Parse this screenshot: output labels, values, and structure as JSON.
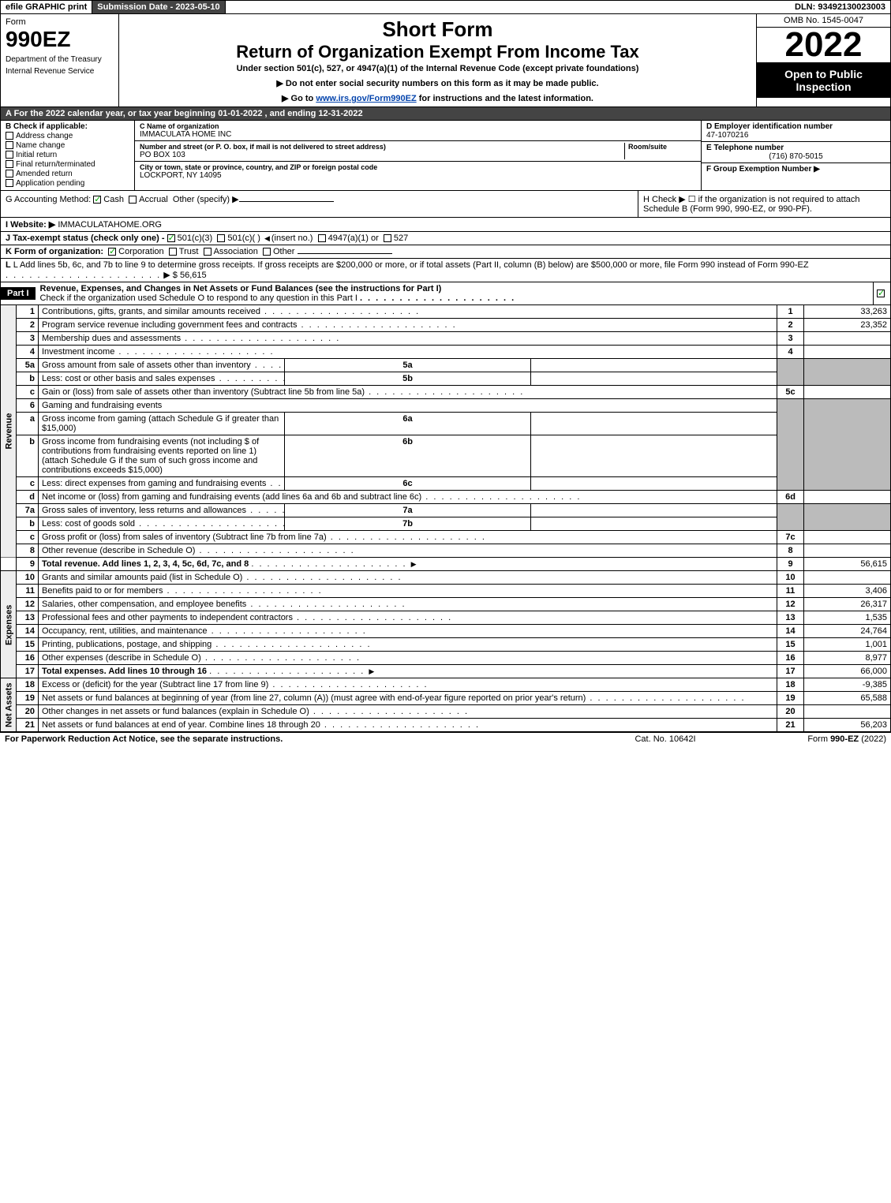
{
  "topbar": {
    "efile": "efile GRAPHIC print",
    "sub_date_label": "Submission Date - 2023-05-10",
    "dln": "DLN: 93492130023003"
  },
  "header": {
    "form_label": "Form",
    "form_no": "990EZ",
    "dept1": "Department of the Treasury",
    "dept2": "Internal Revenue Service",
    "short": "Short Form",
    "title": "Return of Organization Exempt From Income Tax",
    "under": "Under section 501(c), 527, or 4947(a)(1) of the Internal Revenue Code (except private foundations)",
    "instr1": "▶ Do not enter social security numbers on this form as it may be made public.",
    "instr2_pre": "▶ Go to ",
    "instr2_link": "www.irs.gov/Form990EZ",
    "instr2_post": " for instructions and the latest information.",
    "omb": "OMB No. 1545-0047",
    "year": "2022",
    "open": "Open to Public Inspection"
  },
  "section_a": "A  For the 2022 calendar year, or tax year beginning 01-01-2022 , and ending 12-31-2022",
  "b": {
    "head": "B  Check if applicable:",
    "opts": [
      "Address change",
      "Name change",
      "Initial return",
      "Final return/terminated",
      "Amended return",
      "Application pending"
    ]
  },
  "c": {
    "name_label": "C Name of organization",
    "name": "IMMACULATA HOME INC",
    "addr_label": "Number and street (or P. O. box, if mail is not delivered to street address)",
    "room_label": "Room/suite",
    "addr": "PO BOX 103",
    "city_label": "City or town, state or province, country, and ZIP or foreign postal code",
    "city": "LOCKPORT, NY  14095"
  },
  "d": {
    "head": "D Employer identification number",
    "ein": "47-1070216",
    "e_head": "E Telephone number",
    "phone": "(716) 870-5015",
    "f_head": "F Group Exemption Number  ▶"
  },
  "g": {
    "label": "G Accounting Method:",
    "cash": "Cash",
    "accrual": "Accrual",
    "other": "Other (specify) ▶"
  },
  "h": {
    "text": "H  Check ▶  ☐  if the organization is not required to attach Schedule B (Form 990, 990-EZ, or 990-PF)."
  },
  "i": {
    "label": "I Website: ▶",
    "val": "IMMACULATAHOME.ORG"
  },
  "j": {
    "label": "J Tax-exempt status (check only one) -",
    "opt1": "501(c)(3)",
    "opt2": "501(c)(  )",
    "opt2_note": "(insert no.)",
    "opt3": "4947(a)(1) or",
    "opt4": "527"
  },
  "k": {
    "label": "K Form of organization:",
    "opts": [
      "Corporation",
      "Trust",
      "Association",
      "Other"
    ]
  },
  "l": {
    "text": "L Add lines 5b, 6c, and 7b to line 9 to determine gross receipts. If gross receipts are $200,000 or more, or if total assets (Part II, column (B) below) are $500,000 or more, file Form 990 instead of Form 990-EZ",
    "amount_label": "▶ $",
    "amount": "56,615"
  },
  "part1": {
    "part": "Part I",
    "title": "Revenue, Expenses, and Changes in Net Assets or Fund Balances (see the instructions for Part I)",
    "sub": "Check if the organization used Schedule O to respond to any question in this Part I"
  },
  "sides": {
    "rev": "Revenue",
    "exp": "Expenses",
    "net": "Net Assets"
  },
  "lines": {
    "l1": {
      "n": "1",
      "d": "Contributions, gifts, grants, and similar amounts received",
      "c": "1",
      "v": "33,263"
    },
    "l2": {
      "n": "2",
      "d": "Program service revenue including government fees and contracts",
      "c": "2",
      "v": "23,352"
    },
    "l3": {
      "n": "3",
      "d": "Membership dues and assessments",
      "c": "3",
      "v": ""
    },
    "l4": {
      "n": "4",
      "d": "Investment income",
      "c": "4",
      "v": ""
    },
    "l5a": {
      "n": "5a",
      "d": "Gross amount from sale of assets other than inventory",
      "m": "5a"
    },
    "l5b": {
      "n": "b",
      "d": "Less: cost or other basis and sales expenses",
      "m": "5b"
    },
    "l5c": {
      "n": "c",
      "d": "Gain or (loss) from sale of assets other than inventory (Subtract line 5b from line 5a)",
      "c": "5c",
      "v": ""
    },
    "l6": {
      "n": "6",
      "d": "Gaming and fundraising events"
    },
    "l6a": {
      "n": "a",
      "d": "Gross income from gaming (attach Schedule G if greater than $15,000)",
      "m": "6a"
    },
    "l6b": {
      "n": "b",
      "d": "Gross income from fundraising events (not including $                    of contributions from fundraising events reported on line 1) (attach Schedule G if the sum of such gross income and contributions exceeds $15,000)",
      "m": "6b"
    },
    "l6c": {
      "n": "c",
      "d": "Less: direct expenses from gaming and fundraising events",
      "m": "6c"
    },
    "l6d": {
      "n": "d",
      "d": "Net income or (loss) from gaming and fundraising events (add lines 6a and 6b and subtract line 6c)",
      "c": "6d",
      "v": ""
    },
    "l7a": {
      "n": "7a",
      "d": "Gross sales of inventory, less returns and allowances",
      "m": "7a"
    },
    "l7b": {
      "n": "b",
      "d": "Less: cost of goods sold",
      "m": "7b"
    },
    "l7c": {
      "n": "c",
      "d": "Gross profit or (loss) from sales of inventory (Subtract line 7b from line 7a)",
      "c": "7c",
      "v": ""
    },
    "l8": {
      "n": "8",
      "d": "Other revenue (describe in Schedule O)",
      "c": "8",
      "v": ""
    },
    "l9": {
      "n": "9",
      "d": "Total revenue. Add lines 1, 2, 3, 4, 5c, 6d, 7c, and 8",
      "c": "9",
      "v": "56,615",
      "bold": true,
      "arrow": true
    },
    "l10": {
      "n": "10",
      "d": "Grants and similar amounts paid (list in Schedule O)",
      "c": "10",
      "v": ""
    },
    "l11": {
      "n": "11",
      "d": "Benefits paid to or for members",
      "c": "11",
      "v": "3,406"
    },
    "l12": {
      "n": "12",
      "d": "Salaries, other compensation, and employee benefits",
      "c": "12",
      "v": "26,317"
    },
    "l13": {
      "n": "13",
      "d": "Professional fees and other payments to independent contractors",
      "c": "13",
      "v": "1,535"
    },
    "l14": {
      "n": "14",
      "d": "Occupancy, rent, utilities, and maintenance",
      "c": "14",
      "v": "24,764"
    },
    "l15": {
      "n": "15",
      "d": "Printing, publications, postage, and shipping",
      "c": "15",
      "v": "1,001"
    },
    "l16": {
      "n": "16",
      "d": "Other expenses (describe in Schedule O)",
      "c": "16",
      "v": "8,977"
    },
    "l17": {
      "n": "17",
      "d": "Total expenses. Add lines 10 through 16",
      "c": "17",
      "v": "66,000",
      "bold": true,
      "arrow": true
    },
    "l18": {
      "n": "18",
      "d": "Excess or (deficit) for the year (Subtract line 17 from line 9)",
      "c": "18",
      "v": "-9,385"
    },
    "l19": {
      "n": "19",
      "d": "Net assets or fund balances at beginning of year (from line 27, column (A)) (must agree with end-of-year figure reported on prior year's return)",
      "c": "19",
      "v": "65,588"
    },
    "l20": {
      "n": "20",
      "d": "Other changes in net assets or fund balances (explain in Schedule O)",
      "c": "20",
      "v": ""
    },
    "l21": {
      "n": "21",
      "d": "Net assets or fund balances at end of year. Combine lines 18 through 20",
      "c": "21",
      "v": "56,203"
    }
  },
  "footer": {
    "left": "For Paperwork Reduction Act Notice, see the separate instructions.",
    "mid": "Cat. No. 10642I",
    "right_pre": "Form ",
    "right_bold": "990-EZ",
    "right_post": " (2022)"
  }
}
